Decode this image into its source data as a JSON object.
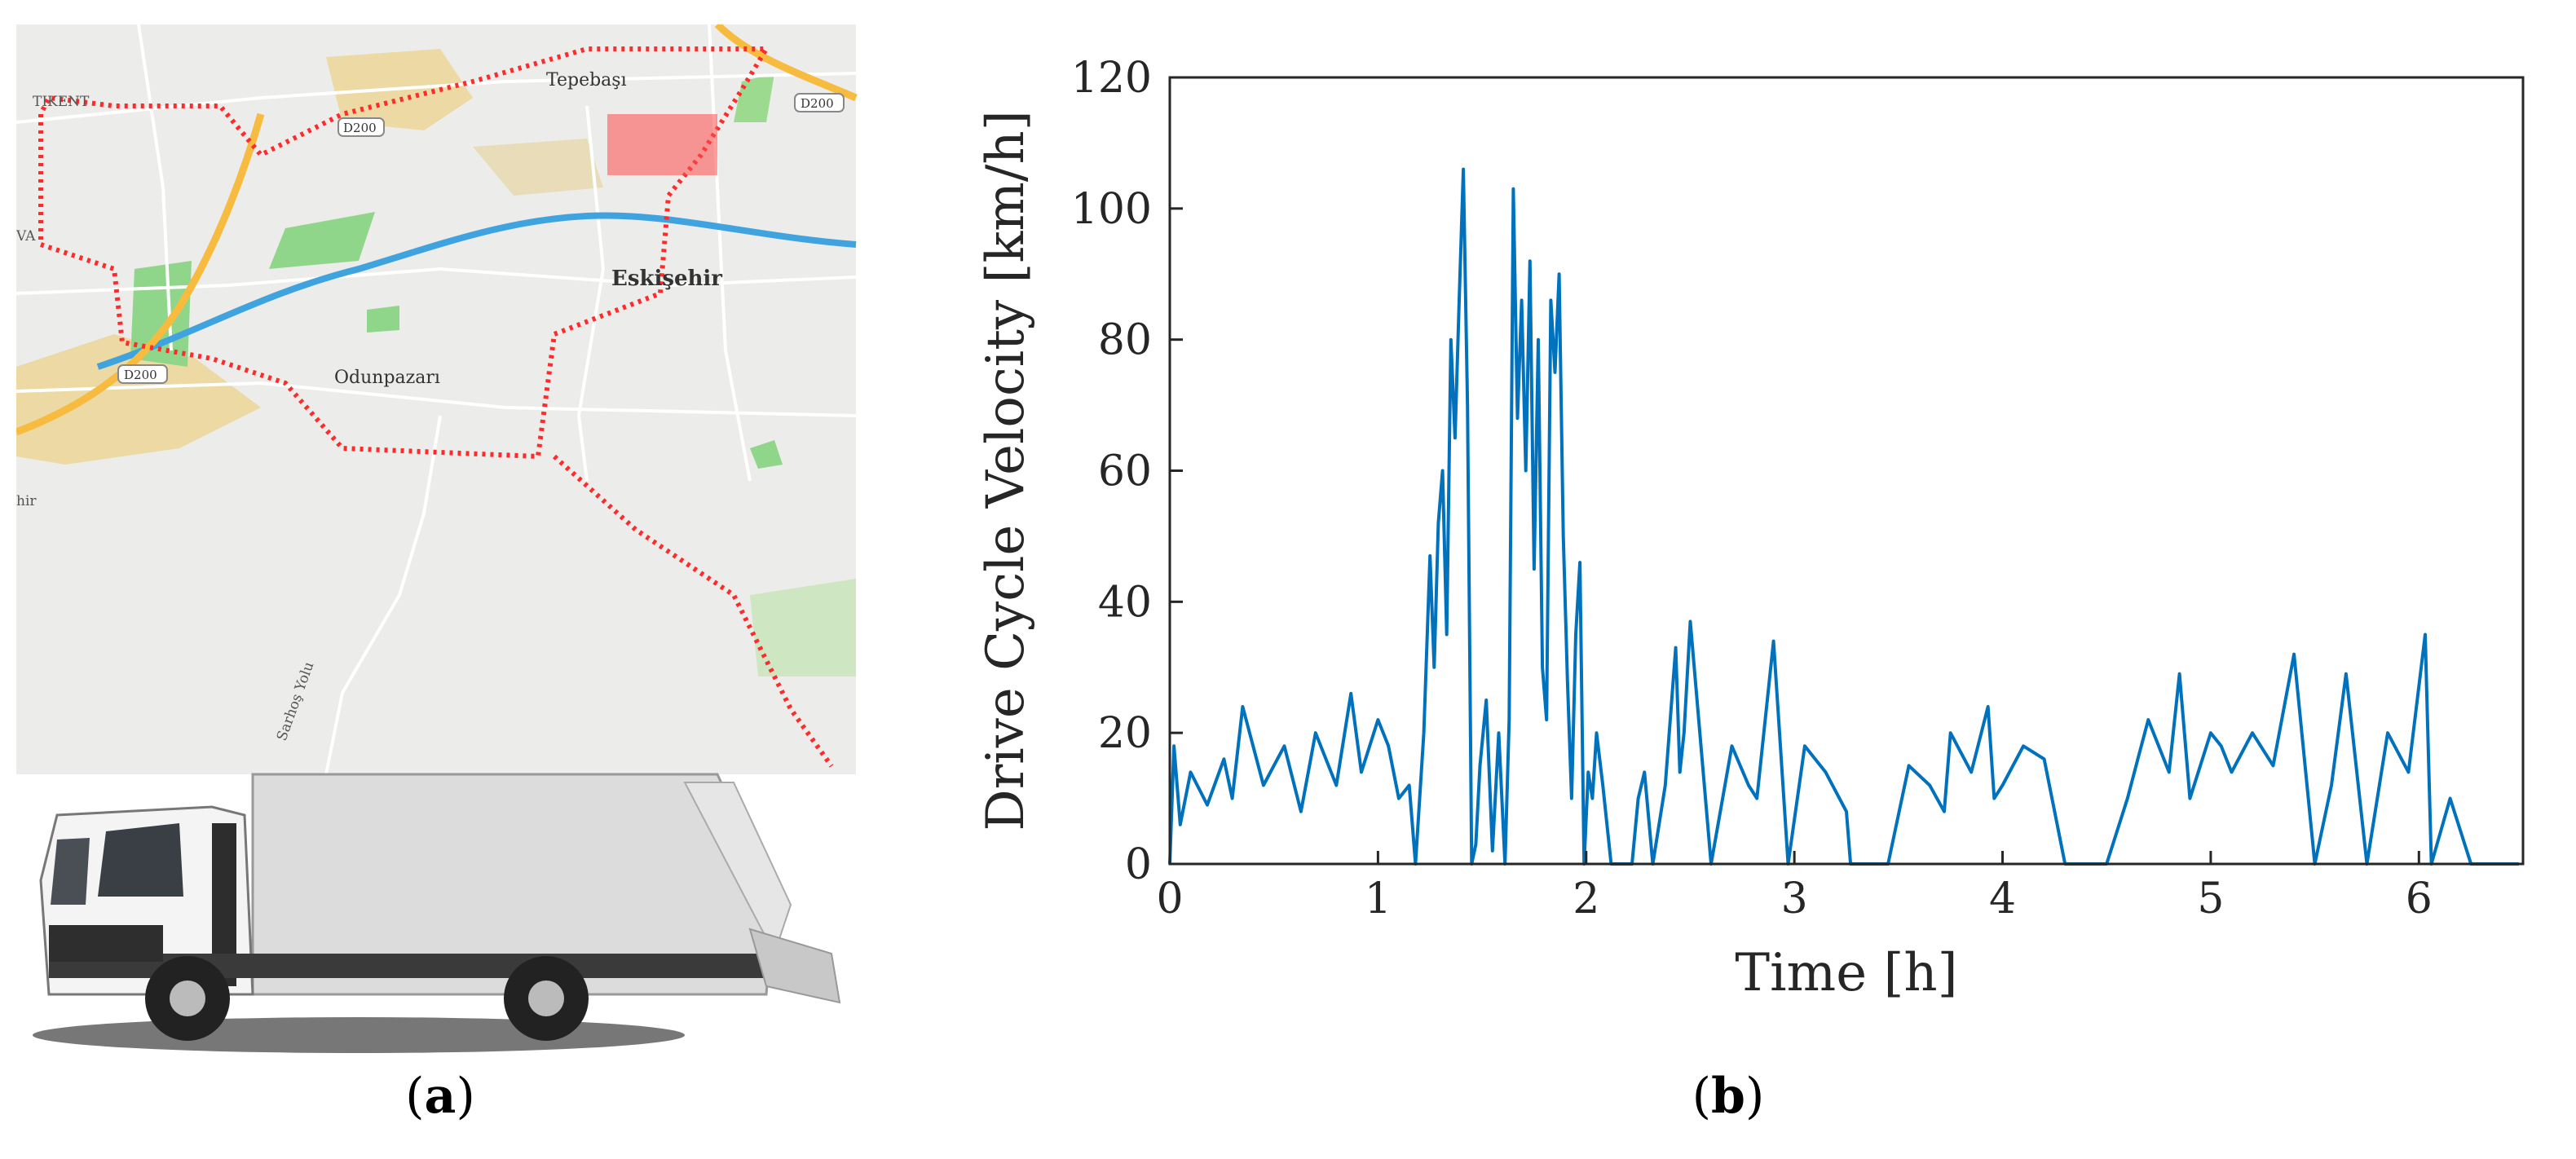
{
  "panel_a": {
    "caption_letter": "a",
    "map": {
      "place_labels": [
        "Tepebaşı",
        "Eskişehir",
        "Odunpazarı",
        "TIKENT",
        "Sarhoş Yolu",
        "hir",
        "VA"
      ],
      "road_badges": [
        "D200",
        "D200",
        "D200"
      ],
      "colors": {
        "map_bg": "#ececea",
        "park": "#8fd68a",
        "residential": "#ecd9a3",
        "river": "#3fa3e0",
        "highway": "#f7bb3f",
        "route": "#ff2a2a"
      }
    },
    "truck": {
      "icon": "garbage-truck-icon"
    }
  },
  "panel_b": {
    "caption_letter": "b",
    "chart_data": {
      "type": "line",
      "title": "",
      "xlabel": "Time [h]",
      "ylabel": "Drive Cycle Velocity [km/h]",
      "xlim": [
        0,
        6.5
      ],
      "ylim": [
        0,
        120
      ],
      "xticks": [
        0,
        1,
        2,
        3,
        4,
        5,
        6
      ],
      "yticks": [
        0,
        20,
        40,
        60,
        80,
        100,
        120
      ],
      "xtick_labels": [
        "0",
        "1",
        "2",
        "3",
        "4",
        "5",
        "6"
      ],
      "ytick_labels": [
        "0",
        "20",
        "40",
        "60",
        "80",
        "100",
        "120"
      ],
      "grid": false,
      "line_color": "#0072bd",
      "series": [
        {
          "x": [
            0.0,
            0.02,
            0.05,
            0.1,
            0.18,
            0.26,
            0.3,
            0.35,
            0.45,
            0.55,
            0.63,
            0.7,
            0.8,
            0.87,
            0.92,
            1.0,
            1.05,
            1.1,
            1.15,
            1.18,
            1.22,
            1.25,
            1.27,
            1.29,
            1.31,
            1.33,
            1.35,
            1.37,
            1.39,
            1.41,
            1.43,
            1.45,
            1.47,
            1.49,
            1.52,
            1.55,
            1.58,
            1.61,
            1.63,
            1.65,
            1.67,
            1.69,
            1.71,
            1.73,
            1.75,
            1.77,
            1.79,
            1.81,
            1.83,
            1.85,
            1.87,
            1.89,
            1.91,
            1.93,
            1.95,
            1.97,
            1.99,
            2.01,
            2.03,
            2.05,
            2.08,
            2.12,
            2.18,
            2.22,
            2.25,
            2.28,
            2.32,
            2.38,
            2.43,
            2.45,
            2.47,
            2.5,
            2.6,
            2.7,
            2.78,
            2.82,
            2.9,
            2.97,
            3.05,
            3.15,
            3.25,
            3.27,
            3.35,
            3.45,
            3.55,
            3.65,
            3.72,
            3.75,
            3.85,
            3.93,
            3.96,
            4.0,
            4.1,
            4.2,
            4.3,
            4.4,
            4.5,
            4.6,
            4.65,
            4.7,
            4.8,
            4.85,
            4.9,
            5.0,
            5.05,
            5.1,
            5.2,
            5.3,
            5.4,
            5.5,
            5.58,
            5.65,
            5.75,
            5.85,
            5.95,
            6.03,
            6.06,
            6.15,
            6.25,
            6.35,
            6.42,
            6.45,
            6.48
          ],
          "y": [
            0,
            18,
            6,
            14,
            9,
            16,
            10,
            24,
            12,
            18,
            8,
            20,
            12,
            26,
            14,
            22,
            18,
            10,
            12,
            0,
            20,
            47,
            30,
            52,
            60,
            35,
            80,
            65,
            86,
            106,
            70,
            0,
            3,
            15,
            25,
            2,
            20,
            0,
            22,
            103,
            68,
            86,
            60,
            92,
            45,
            80,
            30,
            22,
            86,
            75,
            90,
            50,
            28,
            10,
            35,
            46,
            0,
            14,
            10,
            20,
            12,
            0,
            0,
            0,
            10,
            14,
            0,
            12,
            33,
            14,
            20,
            37,
            0,
            18,
            12,
            10,
            34,
            0,
            18,
            14,
            8,
            0,
            0,
            0,
            15,
            12,
            8,
            20,
            14,
            24,
            10,
            12,
            18,
            16,
            0,
            0,
            0,
            10,
            16,
            22,
            14,
            29,
            10,
            20,
            18,
            14,
            20,
            15,
            32,
            0,
            12,
            29,
            0,
            20,
            14,
            35,
            0,
            10,
            0,
            0,
            0,
            0,
            0
          ]
        }
      ]
    }
  }
}
